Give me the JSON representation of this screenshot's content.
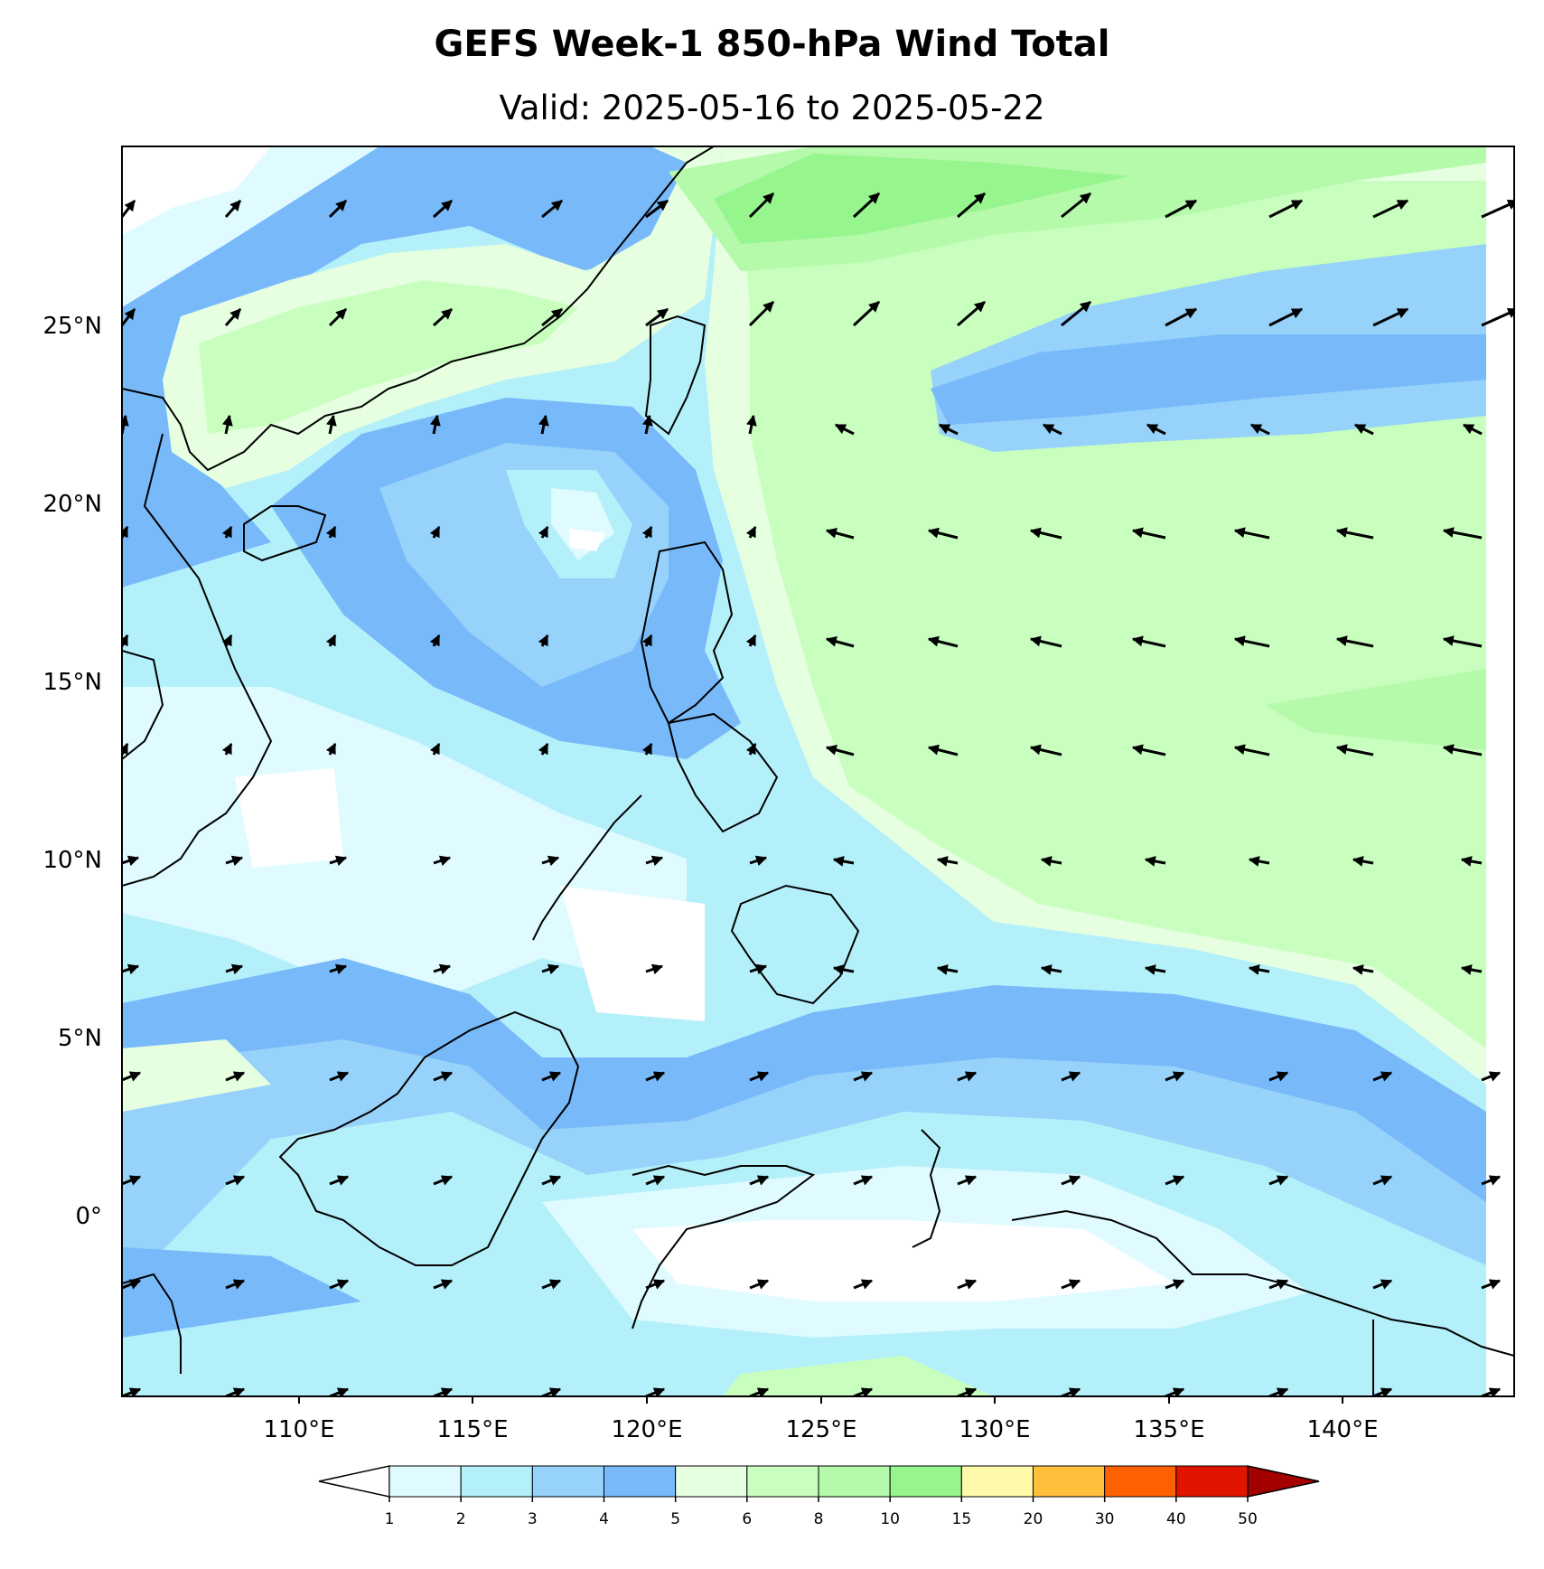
{
  "title": "GEFS Week-1 850-hPa Wind Total",
  "subtitle": "Valid: 2025-05-16 to 2025-05-22",
  "map": {
    "lon_range": [
      105,
      145
    ],
    "lat_range": [
      -5,
      30
    ],
    "lon_ticks": [
      "110°E",
      "115°E",
      "120°E",
      "125°E",
      "130°E",
      "135°E",
      "140°E"
    ],
    "lat_ticks": [
      "25°N",
      "20°N",
      "15°N",
      "10°N",
      "5°N",
      "0°"
    ]
  },
  "colorbar": {
    "labels": [
      "1",
      "2",
      "3",
      "4",
      "5",
      "6",
      "8",
      "10",
      "15",
      "20",
      "30",
      "40",
      "50"
    ],
    "colors": [
      "#e0fbff",
      "#b4f0fa",
      "#96d2fa",
      "#78b9fa",
      "#e6ffe1",
      "#c8ffbe",
      "#b4faaa",
      "#96f58c",
      "#fffaaa",
      "#ffc03c",
      "#ff6000",
      "#e11400",
      "#a50000"
    ],
    "under_color": "#ffffff"
  },
  "wind_field_icon": "wind-arrow-icon"
}
